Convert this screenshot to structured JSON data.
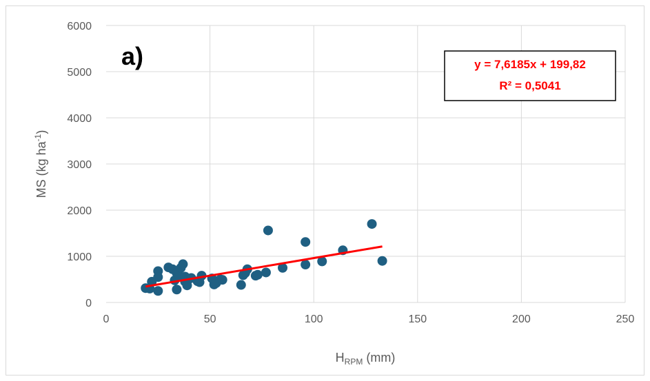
{
  "chart_data": {
    "type": "scatter",
    "panel_label": "a)",
    "xlabel_main": "H",
    "xlabel_sub": "RPM",
    "xlabel_unit": " (mm)",
    "ylabel_main": "MS (kg ha",
    "ylabel_sup": "-1",
    "ylabel_close": ")",
    "xlim": [
      0,
      250
    ],
    "ylim": [
      0,
      6000
    ],
    "xticks": [
      0,
      50,
      100,
      150,
      200,
      250
    ],
    "yticks": [
      0,
      1000,
      2000,
      3000,
      4000,
      5000,
      6000
    ],
    "grid": true,
    "colors": {
      "points": "#1f5f82",
      "trendline": "#ff0000",
      "grid": "#d9d9d9",
      "text": "#595959"
    },
    "points": [
      {
        "x": 19,
        "y": 310
      },
      {
        "x": 21,
        "y": 300
      },
      {
        "x": 22,
        "y": 450
      },
      {
        "x": 25,
        "y": 250
      },
      {
        "x": 25,
        "y": 680
      },
      {
        "x": 25,
        "y": 550
      },
      {
        "x": 30,
        "y": 760
      },
      {
        "x": 32,
        "y": 720
      },
      {
        "x": 33,
        "y": 480
      },
      {
        "x": 34,
        "y": 640
      },
      {
        "x": 34,
        "y": 280
      },
      {
        "x": 35,
        "y": 590
      },
      {
        "x": 36,
        "y": 750
      },
      {
        "x": 37,
        "y": 830
      },
      {
        "x": 38,
        "y": 560
      },
      {
        "x": 38,
        "y": 450
      },
      {
        "x": 39,
        "y": 370
      },
      {
        "x": 40,
        "y": 510
      },
      {
        "x": 41,
        "y": 530
      },
      {
        "x": 44,
        "y": 460
      },
      {
        "x": 45,
        "y": 440
      },
      {
        "x": 46,
        "y": 580
      },
      {
        "x": 51,
        "y": 520
      },
      {
        "x": 52,
        "y": 390
      },
      {
        "x": 53,
        "y": 420
      },
      {
        "x": 55,
        "y": 500
      },
      {
        "x": 56,
        "y": 490
      },
      {
        "x": 65,
        "y": 380
      },
      {
        "x": 66,
        "y": 590
      },
      {
        "x": 67,
        "y": 640
      },
      {
        "x": 68,
        "y": 720
      },
      {
        "x": 72,
        "y": 580
      },
      {
        "x": 73,
        "y": 600
      },
      {
        "x": 77,
        "y": 650
      },
      {
        "x": 78,
        "y": 1560
      },
      {
        "x": 85,
        "y": 750
      },
      {
        "x": 96,
        "y": 820
      },
      {
        "x": 96,
        "y": 1310
      },
      {
        "x": 104,
        "y": 890
      },
      {
        "x": 114,
        "y": 1130
      },
      {
        "x": 128,
        "y": 1700
      },
      {
        "x": 133,
        "y": 900
      }
    ],
    "trendline": {
      "slope": 7.6185,
      "intercept": 199.82,
      "x_range": [
        19,
        133
      ],
      "equation": "y = 7,6185x + 199,82",
      "r2": "R² = 0,5041"
    }
  }
}
